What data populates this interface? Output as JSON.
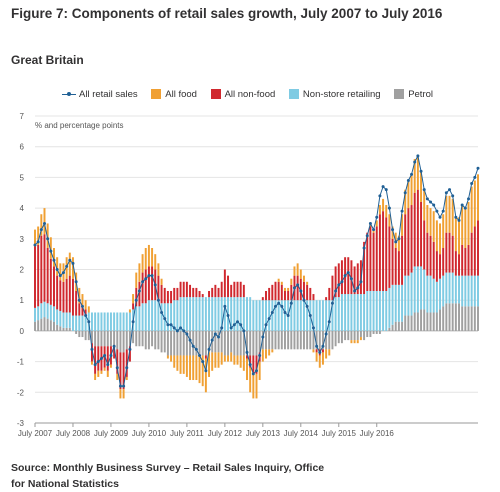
{
  "title": "Figure 7: Components of retail sales growth, July 2007 to July 2016",
  "subtitle": "Great Britain",
  "source": "Source: Monthly Business Survey – Retail Sales Inquiry, Office for National Statistics",
  "colors": {
    "all_retail_sales": "#206095",
    "all_food": "#f0a033",
    "all_non_food": "#d0282e",
    "non_store_retailing": "#7fcbe3",
    "petrol": "#a0a0a0",
    "grid": "#e4e4e4",
    "axis": "#9a9a9a"
  },
  "chart_data": {
    "type": "bar",
    "stacked": true,
    "ylabel": "% and percentage points",
    "ylim": [
      -3,
      7
    ],
    "yticks": [
      -3,
      -2,
      -1,
      0,
      1,
      2,
      3,
      4,
      5,
      6,
      7
    ],
    "xtick_labels": [
      "July 2007",
      "July 2008",
      "July 2009",
      "July 2010",
      "July 2011",
      "July 2012",
      "July 2013",
      "July 2014",
      "July 2015",
      "July 2016"
    ],
    "grid": true,
    "legend_position": "top",
    "start_period": "July 2007",
    "end_period": "July 2016",
    "series": [
      {
        "name": "All retail sales",
        "kind": "line",
        "values": [
          2.8,
          2.9,
          3.3,
          3.5,
          3.0,
          2.6,
          2.3,
          2.0,
          1.8,
          1.9,
          2.1,
          2.3,
          2.2,
          1.6,
          1.0,
          0.8,
          0.5,
          0.3,
          -0.6,
          -1.1,
          -1.0,
          -0.9,
          -0.8,
          -1.1,
          -0.8,
          -0.5,
          -1.2,
          -1.8,
          -1.8,
          -1.2,
          -0.6,
          0.3,
          1.0,
          1.3,
          1.6,
          1.7,
          1.8,
          1.8,
          1.5,
          1.0,
          0.6,
          0.4,
          0.2,
          0.2,
          0.1,
          0.0,
          0.1,
          0.0,
          -0.1,
          -0.3,
          -0.5,
          -0.6,
          -0.8,
          -1.0,
          -1.3,
          -0.6,
          -0.3,
          -0.1,
          -0.2,
          0.1,
          0.8,
          0.5,
          0.1,
          0.2,
          0.3,
          0.2,
          0.0,
          -0.7,
          -1.1,
          -1.4,
          -1.3,
          -0.8,
          -0.2,
          0.2,
          0.4,
          0.6,
          0.8,
          0.9,
          0.8,
          0.6,
          0.5,
          0.9,
          1.4,
          1.5,
          1.3,
          1.0,
          0.8,
          0.5,
          0.1,
          -0.5,
          -0.7,
          -0.5,
          -0.1,
          0.3,
          0.9,
          1.3,
          1.5,
          1.6,
          1.8,
          1.9,
          1.7,
          1.3,
          1.4,
          1.6,
          2.7,
          3.1,
          3.5,
          3.3,
          3.7,
          4.4,
          4.7,
          4.6,
          4.0,
          3.3,
          2.9,
          3.0,
          3.9,
          4.5,
          4.9,
          5.1,
          5.5,
          5.7,
          5.2,
          4.6,
          4.3,
          4.2,
          4.1,
          3.9,
          3.7,
          3.9,
          4.5,
          4.6,
          4.4,
          3.7,
          3.6,
          4.1,
          4.0,
          4.3,
          4.8,
          5.0,
          5.3
        ]
      },
      {
        "name": "All food",
        "kind": "bar",
        "values": [
          0.55,
          0.6,
          0.7,
          0.85,
          0.8,
          0.7,
          0.6,
          0.6,
          0.55,
          0.6,
          0.7,
          0.75,
          0.7,
          0.6,
          0.5,
          0.4,
          0.3,
          0.2,
          -0.1,
          -0.2,
          -0.2,
          -0.1,
          -0.1,
          -0.2,
          -0.1,
          0.0,
          -0.2,
          -0.3,
          -0.3,
          -0.1,
          0.1,
          0.3,
          0.5,
          0.6,
          0.6,
          0.7,
          0.7,
          0.6,
          0.5,
          0.4,
          0.2,
          0.0,
          -0.1,
          -0.2,
          -0.4,
          -0.5,
          -0.6,
          -0.6,
          -0.7,
          -0.8,
          -0.8,
          -0.8,
          -0.9,
          -1.0,
          -1.1,
          -0.8,
          -0.6,
          -0.5,
          -0.5,
          -0.4,
          -0.2,
          -0.2,
          -0.3,
          -0.3,
          -0.3,
          -0.4,
          -0.5,
          -0.7,
          -0.8,
          -0.8,
          -0.8,
          -0.6,
          -0.4,
          -0.3,
          -0.2,
          -0.1,
          0.0,
          0.1,
          0.1,
          0.1,
          0.1,
          0.2,
          0.3,
          0.4,
          0.3,
          0.2,
          0.1,
          0.0,
          -0.1,
          -0.3,
          -0.4,
          -0.4,
          -0.3,
          -0.2,
          0.0,
          0.0,
          0.0,
          0.0,
          0.0,
          0.0,
          -0.1,
          -0.1,
          -0.1,
          -0.1,
          0.0,
          0.0,
          0.1,
          0.1,
          0.2,
          0.3,
          0.4,
          0.4,
          0.4,
          0.4,
          0.5,
          0.5,
          0.7,
          0.8,
          0.9,
          1.0,
          1.1,
          1.1,
          1.0,
          1.0,
          0.9,
          0.9,
          1.0,
          1.0,
          1.0,
          1.1,
          1.2,
          1.2,
          1.2,
          1.1,
          1.2,
          1.3,
          1.3,
          1.4,
          1.5,
          1.5,
          1.5
        ]
      },
      {
        "name": "All non-food",
        "kind": "bar",
        "values": [
          2.0,
          2.0,
          2.2,
          2.2,
          1.8,
          1.5,
          1.3,
          1.1,
          1.0,
          1.0,
          1.1,
          1.2,
          1.2,
          0.8,
          0.4,
          0.3,
          0.2,
          0.0,
          -0.6,
          -0.9,
          -0.8,
          -0.8,
          -0.7,
          -0.8,
          -0.6,
          -0.4,
          -0.8,
          -1.2,
          -1.2,
          -0.9,
          -0.5,
          0.2,
          0.6,
          0.8,
          1.0,
          1.1,
          1.1,
          1.1,
          1.0,
          0.8,
          0.6,
          0.5,
          0.4,
          0.4,
          0.4,
          0.4,
          0.5,
          0.5,
          0.5,
          0.4,
          0.3,
          0.3,
          0.2,
          0.1,
          -0.1,
          0.2,
          0.3,
          0.4,
          0.3,
          0.5,
          0.9,
          0.7,
          0.4,
          0.5,
          0.5,
          0.5,
          0.4,
          -0.1,
          -0.4,
          -0.6,
          -0.6,
          -0.3,
          0.1,
          0.3,
          0.4,
          0.5,
          0.6,
          0.6,
          0.5,
          0.3,
          0.3,
          0.5,
          0.8,
          0.8,
          0.7,
          0.6,
          0.5,
          0.4,
          0.2,
          -0.1,
          -0.2,
          -0.1,
          0.1,
          0.4,
          0.8,
          1.0,
          1.1,
          1.1,
          1.2,
          1.2,
          1.1,
          0.9,
          1.0,
          1.1,
          1.7,
          1.9,
          2.1,
          1.9,
          2.1,
          2.5,
          2.6,
          2.4,
          2.0,
          1.5,
          1.2,
          1.1,
          1.6,
          2.0,
          2.2,
          2.2,
          2.4,
          2.5,
          2.1,
          1.6,
          1.4,
          1.3,
          1.2,
          1.0,
          0.8,
          0.9,
          1.3,
          1.3,
          1.2,
          0.8,
          0.7,
          1.0,
          0.9,
          1.0,
          1.4,
          1.6,
          1.8
        ]
      },
      {
        "name": "Non-store retailing",
        "kind": "bar",
        "values": [
          0.45,
          0.45,
          0.5,
          0.5,
          0.5,
          0.5,
          0.5,
          0.5,
          0.5,
          0.5,
          0.5,
          0.5,
          0.5,
          0.5,
          0.5,
          0.5,
          0.5,
          0.6,
          0.6,
          0.6,
          0.6,
          0.6,
          0.6,
          0.6,
          0.6,
          0.6,
          0.6,
          0.6,
          0.6,
          0.6,
          0.6,
          0.7,
          0.8,
          0.8,
          0.9,
          0.9,
          1.0,
          1.0,
          1.0,
          1.0,
          0.9,
          0.9,
          0.9,
          0.9,
          1.0,
          1.0,
          1.1,
          1.1,
          1.1,
          1.1,
          1.1,
          1.1,
          1.1,
          1.1,
          1.1,
          1.1,
          1.1,
          1.1,
          1.1,
          1.1,
          1.1,
          1.1,
          1.1,
          1.1,
          1.1,
          1.1,
          1.1,
          1.1,
          1.1,
          1.0,
          1.0,
          1.0,
          1.0,
          1.0,
          1.0,
          1.0,
          1.0,
          1.0,
          1.0,
          1.0,
          1.0,
          1.0,
          1.0,
          1.0,
          1.0,
          1.0,
          1.0,
          1.0,
          1.0,
          1.0,
          1.0,
          1.0,
          1.0,
          1.0,
          1.0,
          1.1,
          1.1,
          1.2,
          1.2,
          1.2,
          1.2,
          1.2,
          1.2,
          1.2,
          1.2,
          1.3,
          1.3,
          1.3,
          1.3,
          1.3,
          1.3,
          1.3,
          1.3,
          1.3,
          1.2,
          1.2,
          1.2,
          1.3,
          1.3,
          1.4,
          1.5,
          1.5,
          1.4,
          1.3,
          1.2,
          1.2,
          1.1,
          1.0,
          1.0,
          1.0,
          1.0,
          1.0,
          1.0,
          0.9,
          0.9,
          1.0,
          1.0,
          1.0,
          1.0,
          1.0,
          1.0
        ]
      },
      {
        "name": "Petrol",
        "kind": "bar",
        "values": [
          0.3,
          0.35,
          0.4,
          0.45,
          0.4,
          0.35,
          0.3,
          0.2,
          0.15,
          0.1,
          0.1,
          0.1,
          0.0,
          -0.1,
          -0.2,
          -0.2,
          -0.3,
          -0.3,
          -0.4,
          -0.5,
          -0.5,
          -0.5,
          -0.5,
          -0.5,
          -0.5,
          -0.5,
          -0.6,
          -0.7,
          -0.7,
          -0.6,
          -0.5,
          -0.4,
          -0.5,
          -0.5,
          -0.5,
          -0.6,
          -0.6,
          -0.5,
          -0.6,
          -0.6,
          -0.7,
          -0.7,
          -0.8,
          -0.8,
          -0.8,
          -0.8,
          -0.8,
          -0.8,
          -0.8,
          -0.8,
          -0.8,
          -0.8,
          -0.8,
          -0.8,
          -0.8,
          -0.7,
          -0.7,
          -0.7,
          -0.7,
          -0.7,
          -0.8,
          -0.8,
          -0.7,
          -0.8,
          -0.8,
          -0.8,
          -0.8,
          -0.8,
          -0.8,
          -0.8,
          -0.8,
          -0.7,
          -0.6,
          -0.6,
          -0.6,
          -0.6,
          -0.6,
          -0.6,
          -0.6,
          -0.6,
          -0.6,
          -0.6,
          -0.6,
          -0.6,
          -0.6,
          -0.6,
          -0.6,
          -0.6,
          -0.6,
          -0.6,
          -0.6,
          -0.6,
          -0.6,
          -0.6,
          -0.6,
          -0.5,
          -0.4,
          -0.4,
          -0.3,
          -0.3,
          -0.3,
          -0.3,
          -0.3,
          -0.2,
          -0.3,
          -0.2,
          -0.2,
          -0.1,
          -0.1,
          -0.1,
          0.0,
          0.0,
          0.1,
          0.2,
          0.3,
          0.3,
          0.3,
          0.5,
          0.5,
          0.5,
          0.6,
          0.6,
          0.7,
          0.7,
          0.6,
          0.6,
          0.6,
          0.6,
          0.7,
          0.8,
          0.9,
          0.9,
          0.9,
          0.9,
          0.9,
          0.8,
          0.8,
          0.8,
          0.8,
          0.8,
          0.8
        ]
      }
    ]
  }
}
